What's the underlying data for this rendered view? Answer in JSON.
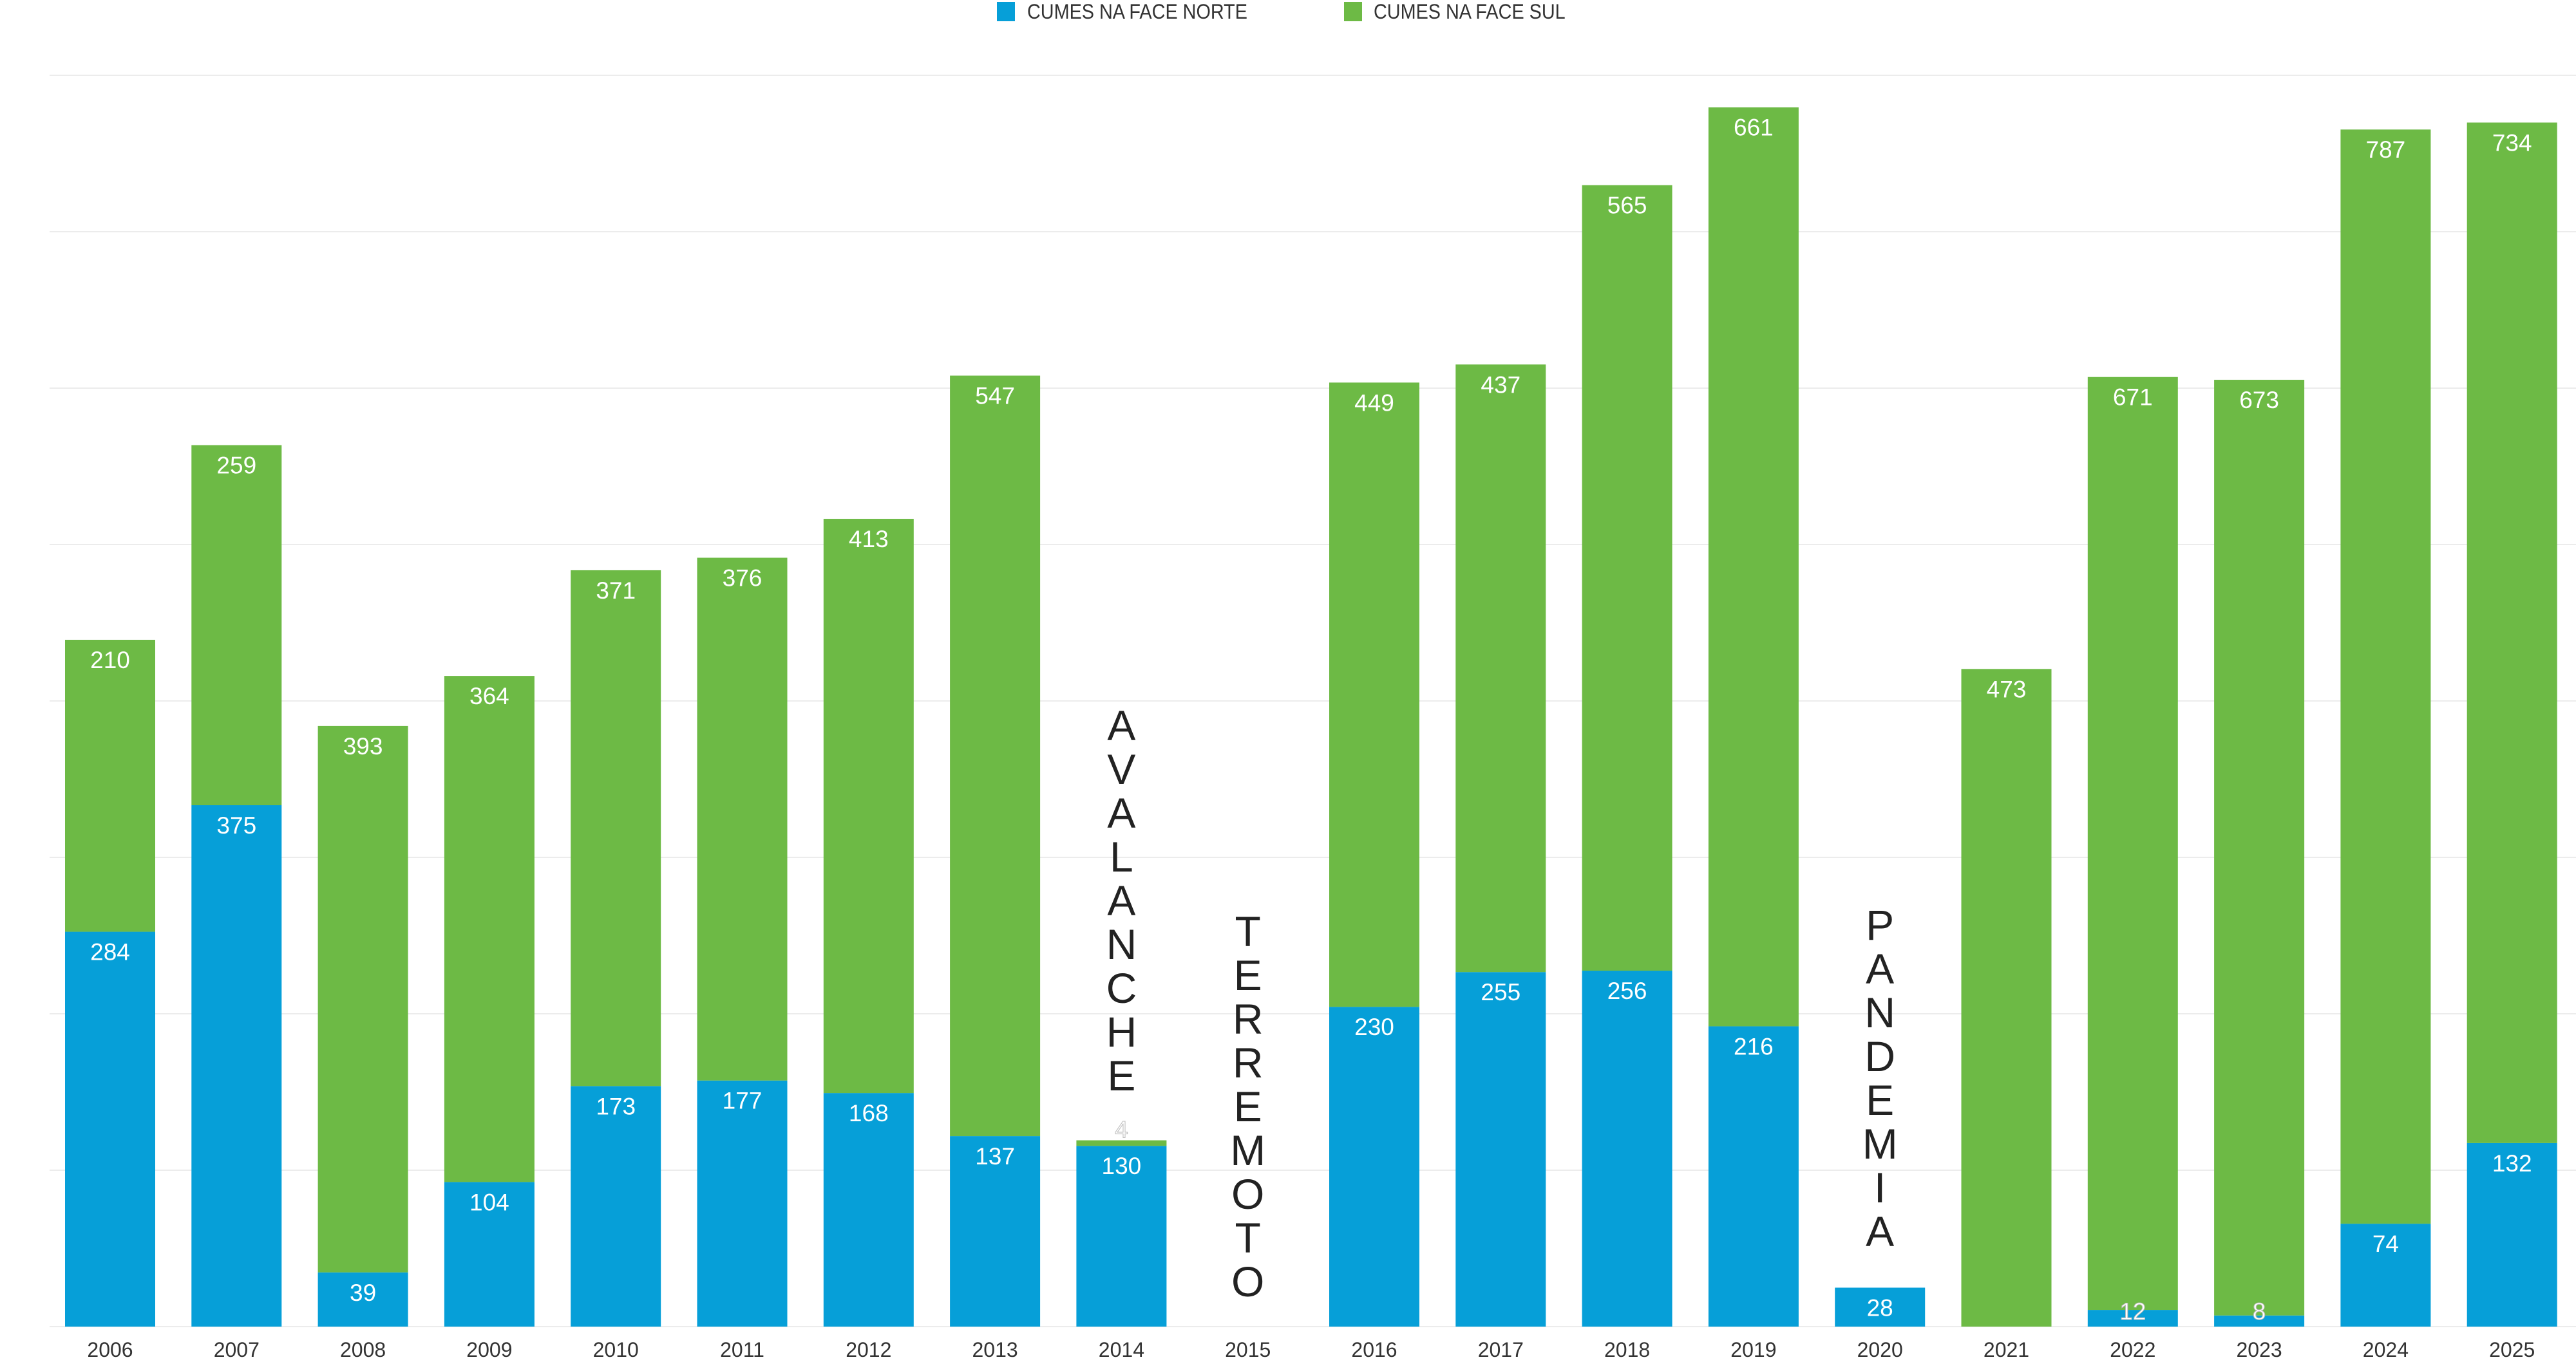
{
  "chart_data": {
    "type": "bar",
    "stacked": true,
    "title": "",
    "xlabel": "",
    "ylabel": "",
    "ylim": [
      0,
      900
    ],
    "grid": true,
    "legend_position": "top-center",
    "categories": [
      "2006",
      "2007",
      "2008",
      "2009",
      "2010",
      "2011",
      "2012",
      "2013",
      "2014",
      "2015",
      "2016",
      "2017",
      "2018",
      "2019",
      "2020",
      "2021",
      "2022",
      "2023",
      "2024",
      "2025"
    ],
    "series": [
      {
        "name": "CUMES NA FACE NORTE",
        "color": "#069FD8",
        "values": [
          284,
          375,
          39,
          104,
          173,
          177,
          168,
          137,
          130,
          0,
          230,
          255,
          256,
          216,
          28,
          0,
          12,
          8,
          74,
          132
        ]
      },
      {
        "name": "CUMES NA FACE SUL",
        "color": "#6DBA45",
        "values": [
          210,
          259,
          393,
          364,
          371,
          376,
          413,
          547,
          4,
          0,
          449,
          437,
          565,
          661,
          0,
          473,
          671,
          673,
          787,
          734
        ]
      }
    ],
    "annotations": [
      {
        "category": "2014",
        "text": "AVALANCHE"
      },
      {
        "category": "2015",
        "text": "TERREMOTO"
      },
      {
        "category": "2020",
        "text": "PANDEMIA"
      }
    ]
  }
}
